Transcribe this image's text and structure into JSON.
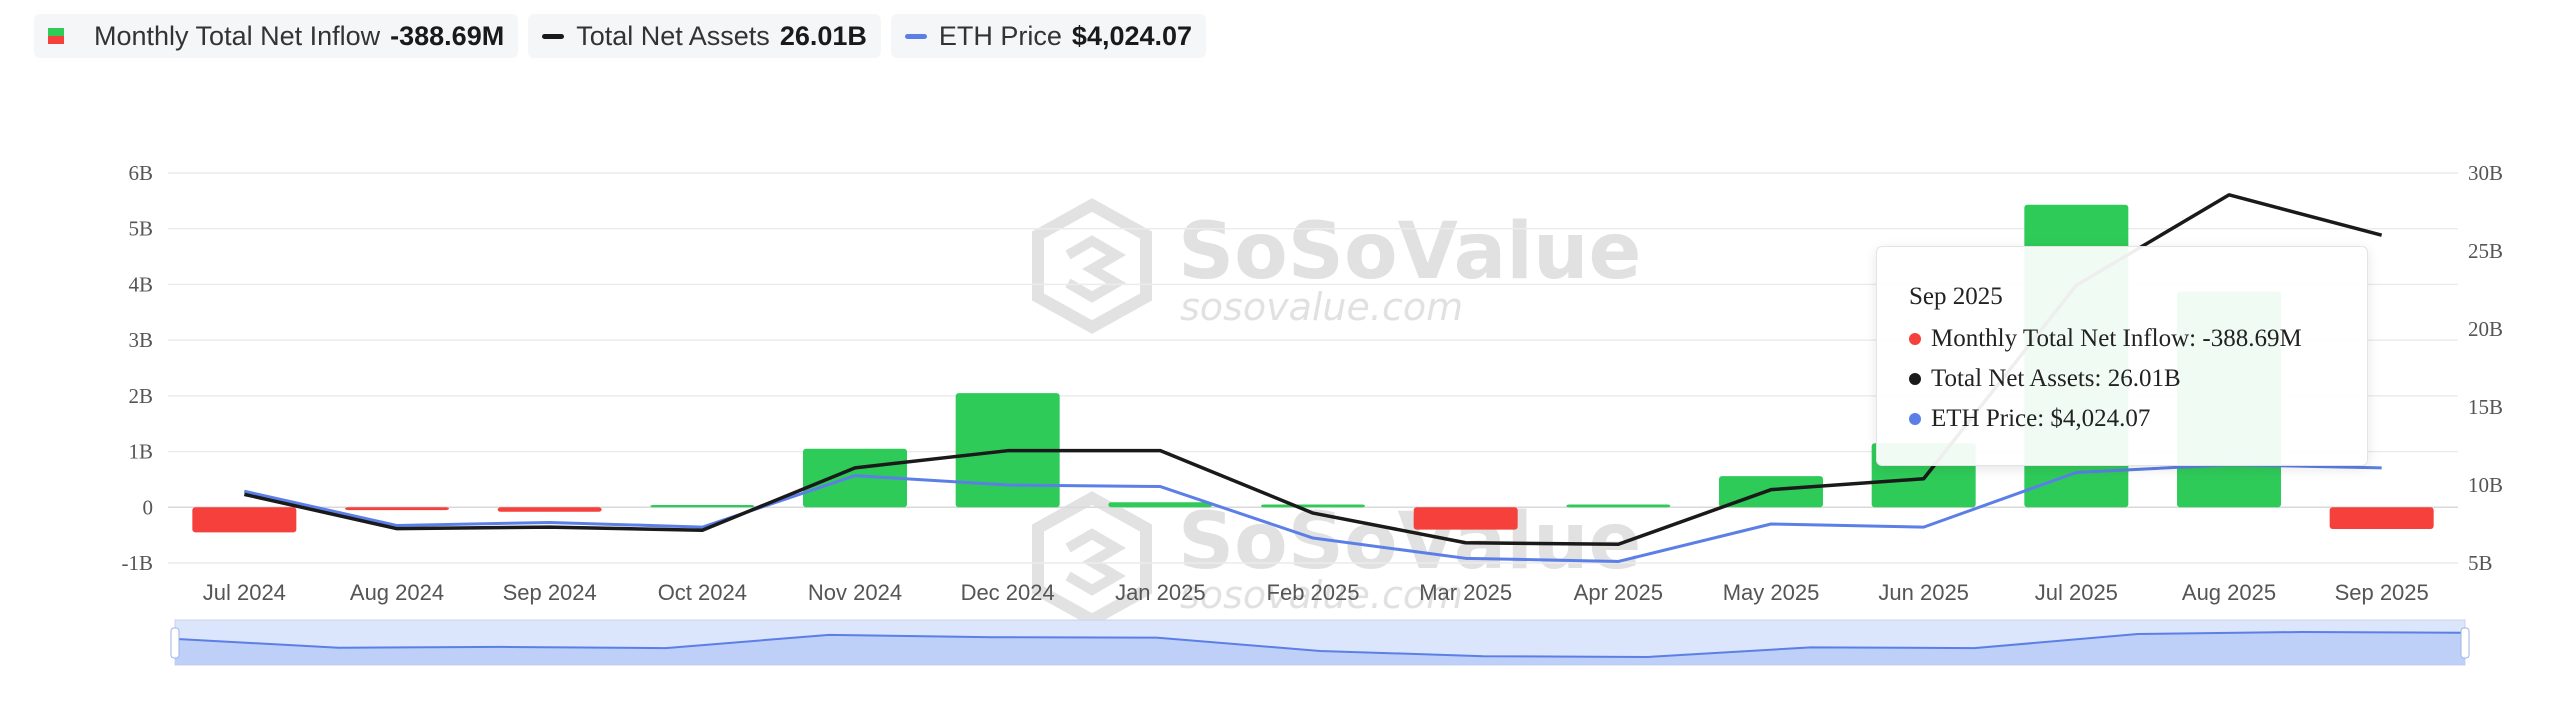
{
  "legend": {
    "inflow": {
      "label": "Monthly Total Net Inflow",
      "value": "-388.69M"
    },
    "assets": {
      "label": "Total Net Assets",
      "value": "26.01B"
    },
    "price": {
      "label": "ETH Price",
      "value": "$4,024.07"
    }
  },
  "watermark": {
    "brand": "SoSoValue",
    "url": "sosovalue.com"
  },
  "tooltip": {
    "date": "Sep 2025",
    "rows": [
      {
        "label": "Monthly Total Net Inflow: -388.69M",
        "color": "#f5403b"
      },
      {
        "label": "Total Net Assets: 26.01B",
        "color": "#1a1a1a"
      },
      {
        "label": "ETH Price: $4,024.07",
        "color": "#5b7fe6"
      }
    ]
  },
  "colors": {
    "inflow_positive": "#2fcb59",
    "inflow_negative": "#f5403b",
    "assets": "#1a1a1a",
    "price": "#5b7fe6"
  },
  "chart_data": {
    "type": "bar",
    "categories": [
      "Jul 2024",
      "Aug 2024",
      "Sep 2024",
      "Oct 2024",
      "Nov 2024",
      "Dec 2024",
      "Jan 2025",
      "Feb 2025",
      "Mar 2025",
      "Apr 2025",
      "May 2025",
      "Jun 2025",
      "Jul 2025",
      "Aug 2025",
      "Sep 2025"
    ],
    "y_left": {
      "ticks": [
        -1,
        0,
        1,
        2,
        3,
        4,
        5,
        6
      ],
      "tick_labels": [
        "-1B",
        "0",
        "1B",
        "2B",
        "3B",
        "4B",
        "5B",
        "6B"
      ],
      "ylim": [
        -1,
        6
      ]
    },
    "y_right": {
      "ticks": [
        5,
        10,
        15,
        20,
        25,
        30
      ],
      "tick_labels": [
        "5B",
        "10B",
        "15B",
        "20B",
        "25B",
        "30B"
      ],
      "ylim": [
        5,
        30
      ]
    },
    "grid": true,
    "legend_position": "top-left",
    "series": [
      {
        "name": "Monthly Total Net Inflow",
        "type": "bar",
        "axis": "left",
        "unit": "B",
        "values": [
          -0.45,
          -0.05,
          -0.08,
          0.04,
          1.05,
          2.05,
          0.09,
          0.05,
          -0.4,
          0.05,
          0.56,
          1.15,
          5.43,
          3.87,
          -0.39
        ]
      },
      {
        "name": "Total Net Assets",
        "type": "line",
        "axis": "right",
        "unit": "B",
        "values": [
          9.4,
          7.2,
          7.3,
          7.1,
          11.1,
          12.2,
          12.2,
          8.2,
          6.3,
          6.2,
          9.7,
          10.4,
          22.8,
          28.6,
          26.01
        ]
      },
      {
        "name": "ETH Price",
        "type": "line",
        "axis": "right",
        "scale": "relative",
        "values": [
          9.6,
          7.4,
          7.6,
          7.3,
          10.6,
          10.0,
          9.9,
          6.6,
          5.3,
          5.1,
          7.5,
          7.3,
          10.8,
          11.3,
          11.1
        ]
      }
    ]
  }
}
